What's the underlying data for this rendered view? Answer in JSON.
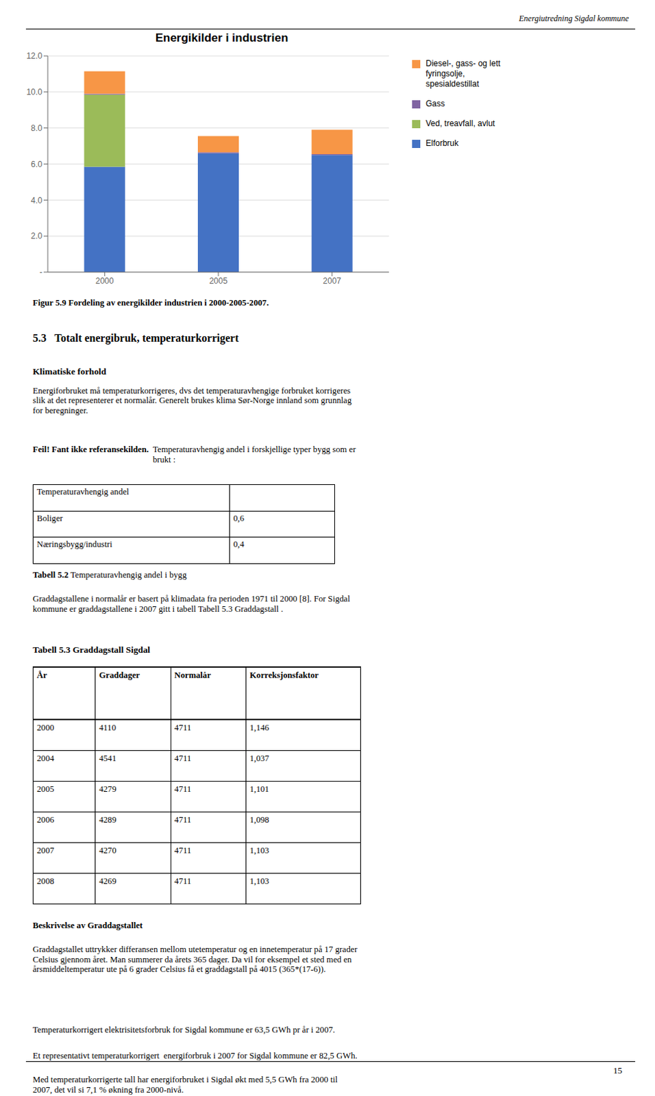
{
  "page_title": "Energiutredning Sigdal kommune",
  "chart_data": {
    "type": "bar",
    "title": "Energikilder i industrien",
    "categories": [
      "2000",
      "2005",
      "2007"
    ],
    "stacked": true,
    "series": [
      {
        "name": "Elforbruk",
        "color": "#4472C4",
        "values": [
          5.85,
          6.6,
          6.5
        ]
      },
      {
        "name": "Ved, treavfall, avlut",
        "color": "#9BBB59",
        "values": [
          4.0,
          0.0,
          0.0
        ]
      },
      {
        "name": "Gass",
        "color": "#8064A2",
        "values": [
          0.05,
          0.05,
          0.05
        ]
      },
      {
        "name": "Diesel-, gass- og lett\nfyringsolje,\nspesialdestillat",
        "color": "#F79646",
        "values": [
          1.25,
          0.9,
          1.35
        ]
      }
    ],
    "ylim": [
      0,
      12.0
    ],
    "yticks": [
      {
        "value": 0,
        "label": "-"
      },
      {
        "value": 2.0,
        "label": "2.0"
      },
      {
        "value": 4.0,
        "label": "4.0"
      },
      {
        "value": 6.0,
        "label": "6.0"
      },
      {
        "value": 8.0,
        "label": "8.0"
      },
      {
        "value": 10.0,
        "label": "10.0"
      },
      {
        "value": 12.0,
        "label": "12.0"
      }
    ],
    "grid": true,
    "legend": "right"
  },
  "figur_caption": "Figur 5.9 Fordeling av energikilder industrien i 2000-2005-2007.",
  "section_heading": "5.3   Totalt energibruk, temperaturkorrigert",
  "subsection_heading": "Klimatiske forhold",
  "para1": "Energiforbruket må temperaturkorrigeres, dvs det temperaturavhengige forbruket korrigeres\nslik at det representerer et normalår. Generelt brukes klima Sør-Norge innland som grunnlag\nfor beregninger.",
  "feil_bold": "Feil! Fant ikke referansekilden.",
  "feil_normal": "Temperaturavhengig andel i forskjellige typer bygg som er\nbrukt :",
  "table1_headers": [
    "Temperaturavhengig andel"
  ],
  "table1_rows": [
    [
      "Boliger",
      "0,6"
    ],
    [
      "Næringsbygg/industri",
      "0,4"
    ]
  ],
  "tabell52_bold": "Tabell 5.2",
  "tabell52_normal": " Temperaturavhengig andel i bygg",
  "graddagpara": "Graddagstallene i normalår er basert på klimadata fra perioden 1971 til 2000 [8]. For Sigdal\nkommune er graddagstallene i 2007 gitt i tabell Tabell 5.3 Graddagstall .",
  "tabell53_heading": "Tabell 5.3 Graddagstall Sigdal",
  "tabell53_col_headers": [
    "År",
    "Graddager",
    "Normalår",
    "Korreksjonsfaktor"
  ],
  "tabell53_rows": [
    [
      "2000",
      "4110",
      "4711",
      "1,146"
    ],
    [
      "2004",
      "4541",
      "4711",
      "1,037"
    ],
    [
      "2005",
      "4279",
      "4711",
      "1,101"
    ],
    [
      "2006",
      "4289",
      "4711",
      "1,098"
    ],
    [
      "2007",
      "4270",
      "4711",
      "1,103"
    ],
    [
      "2008",
      "4269",
      "4711",
      "1,103"
    ]
  ],
  "beskrivelse_bold": "Beskrivelse av Graddagstallet",
  "beskrivelse_para": "Graddagstallet uttrykker differansen mellom utetemperatur og en innetemperatur på 17 grader\nCelsius gjennom året. Man summerer da årets 365 dager. Da vil for eksempel et sted med en\nårsmiddeltemperatur ute på 6 grader Celsius få et graddagstall på 4015 (365*(17-6)).",
  "temp_para1": "Temperaturkorrigert elektrisitetsforbruk for Sigdal kommune er 63,5 GWh pr år i 2007.",
  "temp_para2": "Et representativt temperaturkorrigert  energiforbruk i 2007 for Sigdal kommune er 82,5 GWh.",
  "temp_para3": "Med temperaturkorrigerte tall har energiforbruket i Sigdal økt med 5,5 GWh fra 2000 til\n2007, det vil si 7,1 % økning fra 2000-nivå.",
  "page_number": "15"
}
